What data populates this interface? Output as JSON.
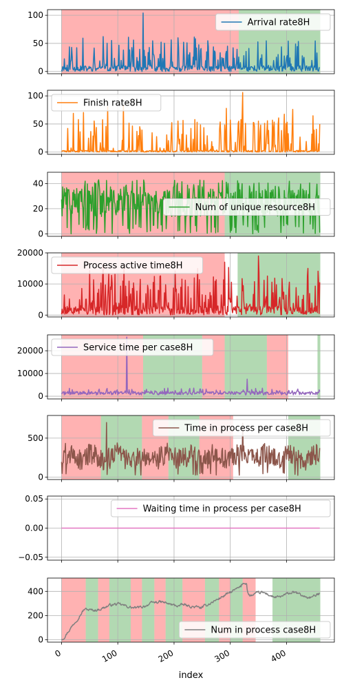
{
  "chart_data": {
    "type": "line",
    "xlabel": "index",
    "x_ticks": [
      0,
      100,
      200,
      300,
      400
    ],
    "xlim": [
      -25,
      485
    ],
    "panels": [
      {
        "name": "Arrival rate8H",
        "color": "#1f77b4",
        "ylim": [
          -4,
          110
        ],
        "yticks": [
          0,
          50,
          100
        ],
        "ytick_labels": [
          "0",
          "50",
          "100"
        ],
        "legend_loc": "upper right",
        "style": "spiky",
        "base": 10,
        "amp": 35,
        "spikes": [
          [
            145,
            104
          ]
        ],
        "seed": 11,
        "n": 460,
        "regions": [
          {
            "start": 0,
            "end": 315,
            "color": "red"
          },
          {
            "start": 315,
            "end": 460,
            "color": "green"
          }
        ]
      },
      {
        "name": "Finish rate8H",
        "color": "#ff7f0e",
        "ylim": [
          -4,
          110
        ],
        "yticks": [
          0,
          50,
          100
        ],
        "ytick_labels": [
          "0",
          "50",
          "100"
        ],
        "legend_loc": "upper left",
        "style": "spiky",
        "base": 3,
        "amp": 55,
        "spikes": [
          [
            322,
            106
          ]
        ],
        "seed": 23,
        "n": 460,
        "regions": []
      },
      {
        "name": "Num of unique resource8H",
        "color": "#2ca02c",
        "ylim": [
          -2,
          49
        ],
        "yticks": [
          0,
          20,
          40
        ],
        "ytick_labels": [
          "0",
          "20",
          "40"
        ],
        "legend_loc": "center right",
        "style": "band",
        "base": 20,
        "amp": 22,
        "spikes": [],
        "seed": 37,
        "n": 460,
        "regions": [
          {
            "start": 0,
            "end": 290,
            "color": "red"
          },
          {
            "start": 290,
            "end": 460,
            "color": "green"
          }
        ]
      },
      {
        "name": "Process active time8H",
        "color": "#d62728",
        "ylim": [
          -600,
          20000
        ],
        "yticks": [
          0,
          10000,
          20000
        ],
        "ytick_labels": [
          "0",
          "10000",
          "20000"
        ],
        "legend_loc": "upper left",
        "style": "spiky",
        "base": 3000,
        "amp": 9000,
        "spikes": [
          [
            290,
            17000
          ],
          [
            350,
            19000
          ]
        ],
        "seed": 53,
        "n": 460,
        "regions": [
          {
            "start": 0,
            "end": 290,
            "color": "red"
          },
          {
            "start": 313,
            "end": 460,
            "color": "green"
          }
        ]
      },
      {
        "name": "Service time per case8H",
        "color": "#9467bd",
        "ylim": [
          -1200,
          27000
        ],
        "yticks": [
          0,
          10000,
          20000
        ],
        "ytick_labels": [
          "0",
          "10000",
          "20000"
        ],
        "legend_loc": "upper left",
        "style": "low",
        "base": 1500,
        "amp": 2500,
        "spikes": [
          [
            116,
            26000
          ],
          [
            330,
            7500
          ]
        ],
        "seed": 71,
        "n": 460,
        "regions": [
          {
            "start": 0,
            "end": 145,
            "color": "red"
          },
          {
            "start": 145,
            "end": 250,
            "color": "green"
          },
          {
            "start": 250,
            "end": 290,
            "color": "red"
          },
          {
            "start": 290,
            "end": 365,
            "color": "green"
          },
          {
            "start": 365,
            "end": 403,
            "color": "red"
          },
          {
            "start": 455,
            "end": 460,
            "color": "green"
          }
        ]
      },
      {
        "name": "Time in process per case8H",
        "color": "#8c564b",
        "ylim": [
          -30,
          790
        ],
        "yticks": [
          0,
          500
        ],
        "ytick_labels": [
          "0",
          "500"
        ],
        "legend_loc": "upper right",
        "style": "wave",
        "base": 260,
        "amp": 280,
        "spikes": [
          [
            80,
            700
          ],
          [
            322,
            690
          ]
        ],
        "seed": 89,
        "n": 460,
        "regions": [
          {
            "start": 0,
            "end": 70,
            "color": "red"
          },
          {
            "start": 70,
            "end": 143,
            "color": "green"
          },
          {
            "start": 143,
            "end": 190,
            "color": "red"
          },
          {
            "start": 190,
            "end": 245,
            "color": "green"
          },
          {
            "start": 245,
            "end": 305,
            "color": "red"
          },
          {
            "start": 403,
            "end": 460,
            "color": "green"
          }
        ]
      },
      {
        "name": "Waiting time in process per case8H",
        "color": "#e377c2",
        "ylim": [
          -0.055,
          0.055
        ],
        "yticks": [
          -0.05,
          0.0,
          0.05
        ],
        "ytick_labels": [
          "−0.05",
          "0.00",
          "0.05"
        ],
        "legend_loc": "upper right",
        "style": "flat",
        "base": 0,
        "amp": 0,
        "spikes": [],
        "seed": 1,
        "n": 460,
        "regions": []
      },
      {
        "name": "Num in process case8H",
        "color": "#7f7f7f",
        "ylim": [
          -20,
          510
        ],
        "yticks": [
          0,
          200,
          400
        ],
        "ytick_labels": [
          "0",
          "200",
          "400"
        ],
        "legend_loc": "lower right",
        "style": "smooth",
        "base": 0,
        "amp": 0,
        "spikes": [],
        "seed": 97,
        "n": 460,
        "regions": [
          {
            "start": 0,
            "end": 43,
            "color": "red"
          },
          {
            "start": 43,
            "end": 65,
            "color": "green"
          },
          {
            "start": 65,
            "end": 85,
            "color": "red"
          },
          {
            "start": 85,
            "end": 123,
            "color": "green"
          },
          {
            "start": 123,
            "end": 143,
            "color": "red"
          },
          {
            "start": 143,
            "end": 165,
            "color": "green"
          },
          {
            "start": 165,
            "end": 185,
            "color": "red"
          },
          {
            "start": 185,
            "end": 215,
            "color": "green"
          },
          {
            "start": 215,
            "end": 255,
            "color": "red"
          },
          {
            "start": 255,
            "end": 280,
            "color": "green"
          },
          {
            "start": 280,
            "end": 300,
            "color": "red"
          },
          {
            "start": 300,
            "end": 322,
            "color": "green"
          },
          {
            "start": 322,
            "end": 345,
            "color": "red"
          },
          {
            "start": 375,
            "end": 460,
            "color": "green"
          }
        ]
      }
    ]
  }
}
